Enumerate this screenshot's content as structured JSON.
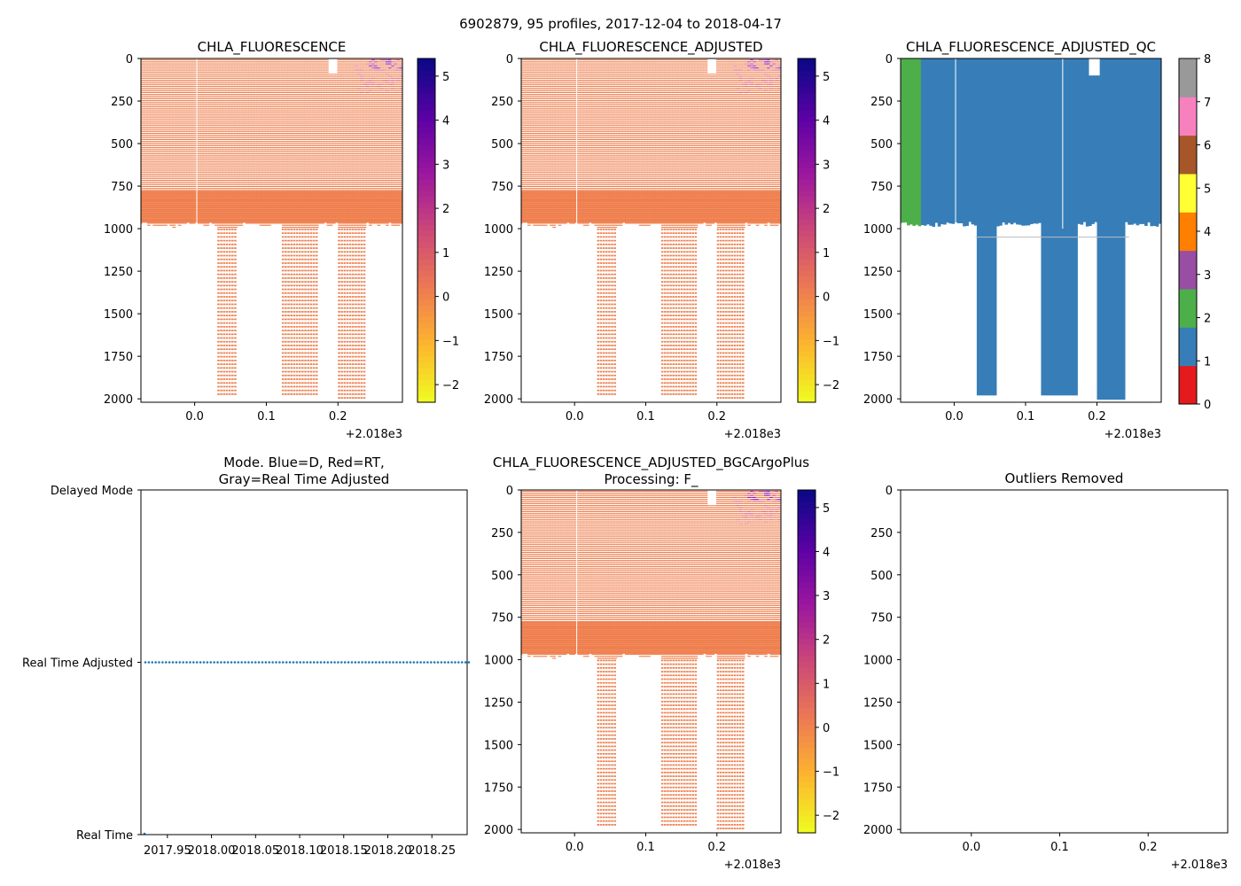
{
  "figure": {
    "suptitle": "6902879, 95 profiles, 2017-12-04 to 2018-04-17"
  },
  "colors": {
    "profile_orange": "#ef7f4e",
    "profile_purple": "#8b12a7",
    "profile_magenta": "#c83486",
    "profile_pink": "#e1627a",
    "qc_good": "#377eb8",
    "qc_probably_good": "#4daf4a",
    "mode_dot": "#1f77b4",
    "gap_line": "#c8b8b0"
  },
  "chart_data": [
    {
      "id": "chla_fluorescence",
      "type": "heatmap",
      "title": "CHLA_FLUORESCENCE",
      "x_range": [
        -0.075,
        0.29
      ],
      "x_ticks": [
        0.0,
        0.1,
        0.2
      ],
      "x_tick_labels": [
        "0.0",
        "0.1",
        "0.2"
      ],
      "x_offset_label": "+2.018e3",
      "y_range": [
        2020,
        0
      ],
      "y_ticks": [
        0,
        250,
        500,
        750,
        1000,
        1250,
        1500,
        1750,
        2000
      ],
      "y_tick_labels": [
        "0",
        "250",
        "500",
        "750",
        "1000",
        "1250",
        "1500",
        "1750",
        "2000"
      ],
      "colormap": "plasma_r",
      "colorbar_range": [
        -2.4,
        5.4
      ],
      "colorbar_ticks": [
        -2,
        -1,
        0,
        1,
        2,
        3,
        4,
        5
      ],
      "colorbar_tick_labels": [
        "−2",
        "−1",
        "0",
        "1",
        "2",
        "3",
        "4",
        "5"
      ],
      "dominant_value": 0.2,
      "layout": "mapped"
    },
    {
      "id": "chla_fluorescence_adjusted",
      "type": "heatmap",
      "title": "CHLA_FLUORESCENCE_ADJUSTED",
      "x_range": [
        -0.075,
        0.29
      ],
      "x_ticks": [
        0.0,
        0.1,
        0.2
      ],
      "x_tick_labels": [
        "0.0",
        "0.1",
        "0.2"
      ],
      "x_offset_label": "+2.018e3",
      "y_range": [
        2020,
        0
      ],
      "y_ticks": [
        0,
        250,
        500,
        750,
        1000,
        1250,
        1500,
        1750,
        2000
      ],
      "y_tick_labels": [
        "0",
        "250",
        "500",
        "750",
        "1000",
        "1250",
        "1500",
        "1750",
        "2000"
      ],
      "colormap": "plasma_r",
      "colorbar_range": [
        -2.4,
        5.4
      ],
      "colorbar_ticks": [
        -2,
        -1,
        0,
        1,
        2,
        3,
        4,
        5
      ],
      "colorbar_tick_labels": [
        "−2",
        "−1",
        "0",
        "1",
        "2",
        "3",
        "4",
        "5"
      ],
      "dominant_value": 0.2,
      "layout": "mapped"
    },
    {
      "id": "chla_fluorescence_adjusted_qc",
      "type": "heatmap",
      "title": "CHLA_FLUORESCENCE_ADJUSTED_QC",
      "x_range": [
        -0.075,
        0.29
      ],
      "x_ticks": [
        0.0,
        0.1,
        0.2
      ],
      "x_tick_labels": [
        "0.0",
        "0.1",
        "0.2"
      ],
      "x_offset_label": "+2.018e3",
      "y_range": [
        2020,
        0
      ],
      "y_ticks": [
        0,
        250,
        500,
        750,
        1000,
        1250,
        1500,
        1750,
        2000
      ],
      "y_tick_labels": [
        "0",
        "250",
        "500",
        "750",
        "1000",
        "1250",
        "1500",
        "1750",
        "2000"
      ],
      "colorbar_range": [
        0,
        8
      ],
      "colorbar_ticks": [
        0,
        1,
        2,
        3,
        4,
        5,
        6,
        7,
        8
      ],
      "colorbar_tick_labels": [
        "0",
        "1",
        "2",
        "3",
        "4",
        "5",
        "6",
        "7",
        "8"
      ],
      "qc_colors": [
        "#e41a1c",
        "#377eb8",
        "#4daf4a",
        "#984ea3",
        "#ff7f00",
        "#ffff33",
        "#a65628",
        "#f781bf",
        "#999999"
      ],
      "dominant_flag": 1,
      "layout": "categorical"
    },
    {
      "id": "mode",
      "type": "scatter",
      "title_lines": [
        "Mode. Blue=D, Red=RT,",
        "Gray=Real Time Adjusted"
      ],
      "x_range": [
        2017.92,
        2018.29
      ],
      "x_ticks": [
        2017.95,
        2018.0,
        2018.05,
        2018.1,
        2018.15,
        2018.2,
        2018.25
      ],
      "x_tick_labels": [
        "2017.95",
        "2018.00",
        "2018.05",
        "2018.10",
        "2018.15",
        "2018.20",
        "2018.25"
      ],
      "y_range": [
        0,
        2
      ],
      "y_ticks": [
        0,
        1,
        2
      ],
      "y_tick_labels": [
        "Real Time",
        "Real Time Adjusted",
        "Delayed Mode"
      ],
      "mode_value": 1,
      "date_start": 2017.925,
      "date_end": 2018.292,
      "profiles": 95,
      "real_time_points": [
        2017.922
      ]
    },
    {
      "id": "chla_fluorescence_adjusted_bgcargoplus",
      "type": "heatmap",
      "title_lines": [
        "CHLA_FLUORESCENCE_ADJUSTED_BGCArgoPlus",
        "Processing: F_"
      ],
      "x_range": [
        -0.075,
        0.29
      ],
      "x_ticks": [
        0.0,
        0.1,
        0.2
      ],
      "x_tick_labels": [
        "0.0",
        "0.1",
        "0.2"
      ],
      "x_offset_label": "+2.018e3",
      "y_range": [
        2020,
        0
      ],
      "y_ticks": [
        0,
        250,
        500,
        750,
        1000,
        1250,
        1500,
        1750,
        2000
      ],
      "y_tick_labels": [
        "0",
        "250",
        "500",
        "750",
        "1000",
        "1250",
        "1500",
        "1750",
        "2000"
      ],
      "colormap": "plasma_r",
      "colorbar_range": [
        -2.4,
        5.4
      ],
      "colorbar_ticks": [
        -2,
        -1,
        0,
        1,
        2,
        3,
        4,
        5
      ],
      "colorbar_tick_labels": [
        "−2",
        "−1",
        "0",
        "1",
        "2",
        "3",
        "4",
        "5"
      ],
      "dominant_value": 0.2,
      "layout": "mapped"
    },
    {
      "id": "outliers_removed",
      "type": "scatter",
      "title": "Outliers Removed",
      "x_range": [
        -0.08,
        0.29
      ],
      "x_ticks": [
        0.0,
        0.1,
        0.2
      ],
      "x_tick_labels": [
        "0.0",
        "0.1",
        "0.2"
      ],
      "x_offset_label": "+2.018e3",
      "y_range": [
        2020,
        0
      ],
      "y_ticks": [
        0,
        250,
        500,
        750,
        1000,
        1250,
        1500,
        1750,
        2000
      ],
      "y_tick_labels": [
        "0",
        "250",
        "500",
        "750",
        "1000",
        "1250",
        "1500",
        "1750",
        "2000"
      ],
      "points": []
    }
  ]
}
